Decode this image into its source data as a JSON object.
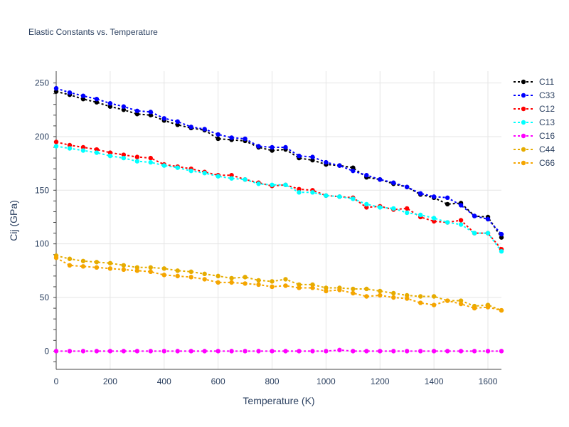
{
  "chart_data": {
    "type": "line",
    "title": "Elastic Constants vs. Temperature",
    "xlabel": "Temperature (K)",
    "ylabel": "Cij (GPa)",
    "xlim": [
      0,
      1650
    ],
    "ylim": [
      -17,
      261
    ],
    "xticks": [
      0,
      200,
      400,
      600,
      800,
      1000,
      1200,
      1400,
      1600
    ],
    "yticks": [
      0,
      50,
      100,
      150,
      200,
      250
    ],
    "grid": true,
    "legend_position": "top-right",
    "x": [
      0,
      50,
      100,
      150,
      200,
      250,
      300,
      350,
      400,
      450,
      500,
      550,
      600,
      650,
      700,
      750,
      800,
      850,
      900,
      950,
      1000,
      1050,
      1100,
      1150,
      1200,
      1250,
      1300,
      1350,
      1400,
      1450,
      1500,
      1550,
      1600,
      1650
    ],
    "series": [
      {
        "name": "C11",
        "color": "#000000",
        "values": [
          242,
          239,
          235,
          232,
          228,
          225,
          221,
          220,
          215,
          211,
          208,
          206,
          198,
          197,
          196,
          190,
          187,
          188,
          180,
          178,
          174,
          173,
          171,
          162,
          160,
          156,
          153,
          146,
          143,
          137,
          138,
          126,
          125,
          106
        ]
      },
      {
        "name": "C33",
        "color": "#0000ff",
        "values": [
          245,
          241,
          238,
          235,
          231,
          228,
          224,
          223,
          217,
          214,
          209,
          207,
          202,
          199,
          198,
          191,
          190,
          190,
          182,
          181,
          176,
          173,
          168,
          164,
          160,
          157,
          153,
          147,
          144,
          143,
          136,
          126,
          123,
          109
        ]
      },
      {
        "name": "C12",
        "color": "#ff0000",
        "values": [
          195,
          192,
          190,
          188,
          185,
          183,
          181,
          180,
          174,
          172,
          170,
          167,
          164,
          164,
          160,
          157,
          154,
          155,
          151,
          150,
          145,
          144,
          143,
          134,
          135,
          132,
          133,
          125,
          121,
          120,
          122,
          110,
          110,
          95
        ]
      },
      {
        "name": "C13",
        "color": "#00ffff",
        "values": [
          191,
          189,
          187,
          185,
          182,
          180,
          177,
          176,
          173,
          171,
          168,
          166,
          163,
          161,
          160,
          156,
          155,
          155,
          148,
          148,
          145,
          144,
          142,
          137,
          134,
          133,
          129,
          127,
          124,
          120,
          118,
          110,
          110,
          93
        ]
      },
      {
        "name": "C16",
        "color": "#ff00ff",
        "values": [
          0,
          0,
          0,
          0,
          0,
          0,
          0,
          0,
          0,
          0,
          0,
          0,
          0,
          0,
          0,
          0,
          0,
          0,
          0,
          0,
          0,
          1,
          0,
          0,
          0,
          0,
          0,
          0,
          0,
          0,
          0,
          0,
          0,
          0
        ]
      },
      {
        "name": "C44",
        "color": "#e6ac00",
        "values": [
          89,
          86,
          84,
          83,
          82,
          80,
          78,
          78,
          77,
          75,
          74,
          72,
          70,
          68,
          69,
          66,
          65,
          67,
          62,
          62,
          59,
          59,
          58,
          58,
          56,
          54,
          52,
          51,
          51,
          47,
          47,
          42,
          43,
          38
        ]
      },
      {
        "name": "C66",
        "color": "#f5a500",
        "values": [
          87,
          80,
          79,
          78,
          77,
          76,
          75,
          74,
          71,
          70,
          69,
          67,
          64,
          64,
          63,
          62,
          60,
          61,
          59,
          59,
          56,
          57,
          54,
          51,
          52,
          50,
          49,
          45,
          43,
          47,
          44,
          40,
          41,
          38
        ]
      }
    ]
  }
}
